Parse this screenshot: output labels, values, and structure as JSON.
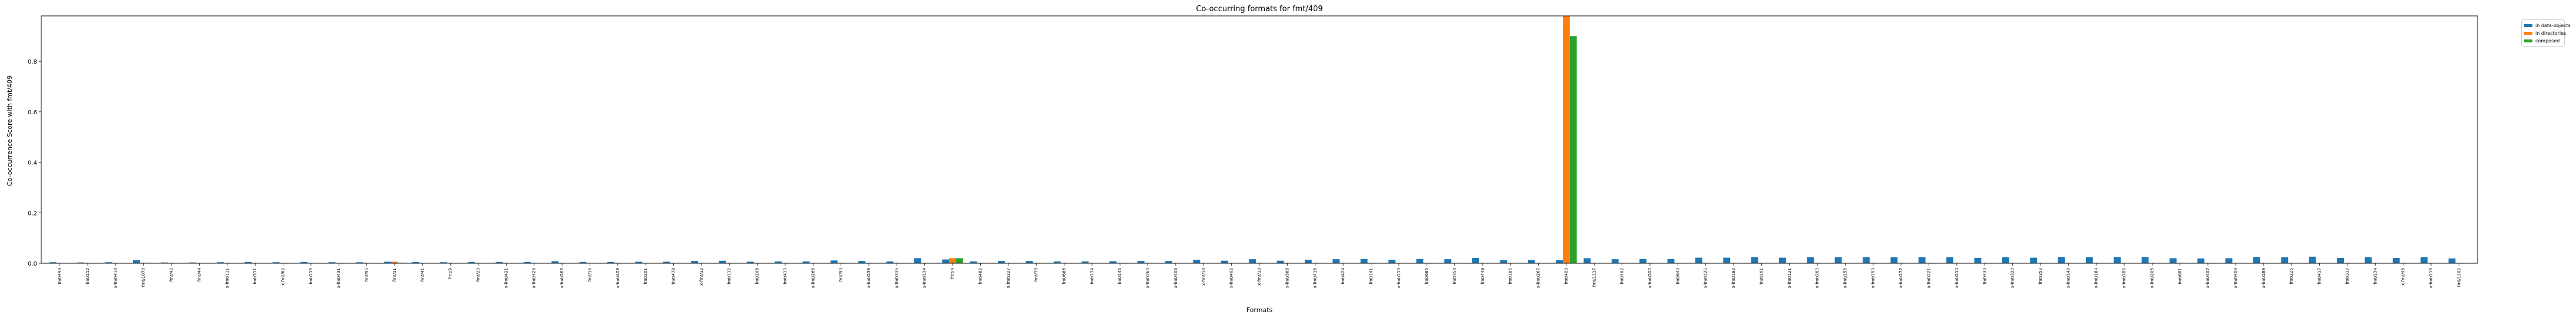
{
  "chart_data": {
    "type": "bar",
    "title": "Co-occurring formats for fmt/409",
    "xlabel": "Formats",
    "ylabel": "Co-occurrence Score with fmt/409",
    "ylim": [
      0,
      0.98
    ],
    "yticks": [
      "0.0",
      "0.2",
      "0.4",
      "0.6",
      "0.8"
    ],
    "ytick_values": [
      0,
      0.2,
      0.4,
      0.6,
      0.8
    ],
    "grid": false,
    "legend_position": "outside-top-right",
    "categories": [
      "fmt/499",
      "fmt/212",
      "x-fmt/418",
      "fmt/1070",
      "fmt/43",
      "fmt/44",
      "x-fmt/111",
      "fmt/311",
      "x-fmt/62",
      "fmt/116",
      "x-fmt/431",
      "fmt/95",
      "fmt/11",
      "fmt/41",
      "fmt/9",
      "fmt/20",
      "x-fmt/421",
      "x-fmt/425",
      "x-fmt/263",
      "fmt/15",
      "x-fmt/409",
      "fmt/201",
      "fmt/479",
      "x-fmt/12",
      "fmt/112",
      "fmt/108",
      "fmt/413",
      "x-fmt/266",
      "fmt/90",
      "x-fmt/238",
      "x-fmt/335",
      "x-fmt/134",
      "fmt/4",
      "fmt/482",
      "x-fmt/227",
      "fmt/38",
      "fmt/686",
      "fmt/134",
      "fmt/145",
      "x-fmt/260",
      "x-fmt/406",
      "x-fmt/18",
      "x-fmt/402",
      "x-fmt/19",
      "x-fmt/388",
      "x-fmt/416",
      "fmt/424",
      "fmt/141",
      "x-fmt/110",
      "fmt/685",
      "fmt/358",
      "fmt/449",
      "fmt/185",
      "x-fmt/267",
      "fmt/408",
      "fmt/1117",
      "fmt/402",
      "x-fmt/200",
      "fmt/640",
      "x-fmt/125",
      "x-fmt/182",
      "fmt/101",
      "x-fmt/121",
      "x-fmt/283",
      "x-fmt/153",
      "x-fmt/150",
      "x-fmt/177",
      "x-fmt/221",
      "x-fmt/214",
      "fmt/430",
      "x-fmt/320",
      "fmt/353",
      "x-fmt/140",
      "x-fmt/184",
      "x-fmt/286",
      "x-fmt/205",
      "fmt/681",
      "x-fmt/407",
      "x-fmt/408",
      "x-fmt/289",
      "fmt/225",
      "fmt/417",
      "fmt/337",
      "fmt/134",
      "x-fmt/45",
      "x-fmt/118",
      "fmt/1102"
    ],
    "categories_hint": "tick labels transcribed as printed (some are partially legible)",
    "series": [
      {
        "name": "in data-objects",
        "color": "#1f77b4",
        "values": [
          0.004,
          0.003,
          0.004,
          0.012,
          0.003,
          0.003,
          0.004,
          0.005,
          0.004,
          0.005,
          0.004,
          0.004,
          0.006,
          0.005,
          0.004,
          0.005,
          0.005,
          0.005,
          0.008,
          0.005,
          0.005,
          0.006,
          0.006,
          0.009,
          0.01,
          0.006,
          0.007,
          0.007,
          0.011,
          0.009,
          0.007,
          0.02,
          0.015,
          0.007,
          0.009,
          0.009,
          0.007,
          0.007,
          0.008,
          0.009,
          0.009,
          0.014,
          0.01,
          0.016,
          0.01,
          0.014,
          0.016,
          0.017,
          0.014,
          0.017,
          0.016,
          0.021,
          0.012,
          0.013,
          0.012,
          0.02,
          0.016,
          0.017,
          0.017,
          0.022,
          0.022,
          0.024,
          0.022,
          0.024,
          0.024,
          0.024,
          0.024,
          0.024,
          0.024,
          0.021,
          0.024,
          0.022,
          0.025,
          0.024,
          0.025,
          0.025,
          0.02,
          0.019,
          0.02,
          0.025,
          0.024,
          0.026,
          0.021,
          0.024,
          0.021,
          0.024,
          0.019
        ]
      },
      {
        "name": "in directories",
        "color": "#ff7f0e",
        "values": [
          0.001,
          0,
          0.001,
          0.002,
          0,
          0,
          0.001,
          0,
          0.001,
          0.001,
          0.001,
          0.001,
          0.006,
          0.001,
          0,
          0.001,
          0.001,
          0.001,
          0.001,
          0.001,
          0.001,
          0.001,
          0.001,
          0.001,
          0.001,
          0.001,
          0.001,
          0.001,
          0.001,
          0.001,
          0.001,
          0.001,
          0.02,
          0.001,
          0.001,
          0.001,
          0.001,
          0.001,
          0.001,
          0.001,
          0.001,
          0.001,
          0.001,
          0.001,
          0.001,
          0.001,
          0.001,
          0.001,
          0.001,
          0.001,
          0.001,
          0.001,
          0.001,
          0.001,
          0.98,
          0.001,
          0.001,
          0.001,
          0.001,
          0.001,
          0.001,
          0.001,
          0.001,
          0.001,
          0.001,
          0.001,
          0.001,
          0.001,
          0.001,
          0.001,
          0.001,
          0.001,
          0.001,
          0.001,
          0.001,
          0.001,
          0.001,
          0.001,
          0.001,
          0.001,
          0.001,
          0.001,
          0.001,
          0.001,
          0.001,
          0.001,
          0.001
        ]
      },
      {
        "name": "composed",
        "color": "#2ca02c",
        "values": [
          0,
          0,
          0,
          0.001,
          0,
          0,
          0,
          0,
          0,
          0,
          0,
          0,
          0.002,
          0,
          0,
          0,
          0,
          0,
          0,
          0,
          0,
          0,
          0,
          0,
          0,
          0,
          0,
          0,
          0,
          0,
          0,
          0,
          0.02,
          0,
          0,
          0,
          0,
          0,
          0,
          0,
          0,
          0,
          0,
          0,
          0,
          0,
          0,
          0,
          0,
          0,
          0,
          0,
          0,
          0,
          0.9,
          0,
          0,
          0,
          0,
          0,
          0,
          0,
          0,
          0,
          0,
          0,
          0,
          0,
          0,
          0,
          0,
          0,
          0,
          0,
          0,
          0,
          0,
          0,
          0,
          0,
          0,
          0,
          0,
          0,
          0,
          0,
          0
        ]
      }
    ]
  }
}
